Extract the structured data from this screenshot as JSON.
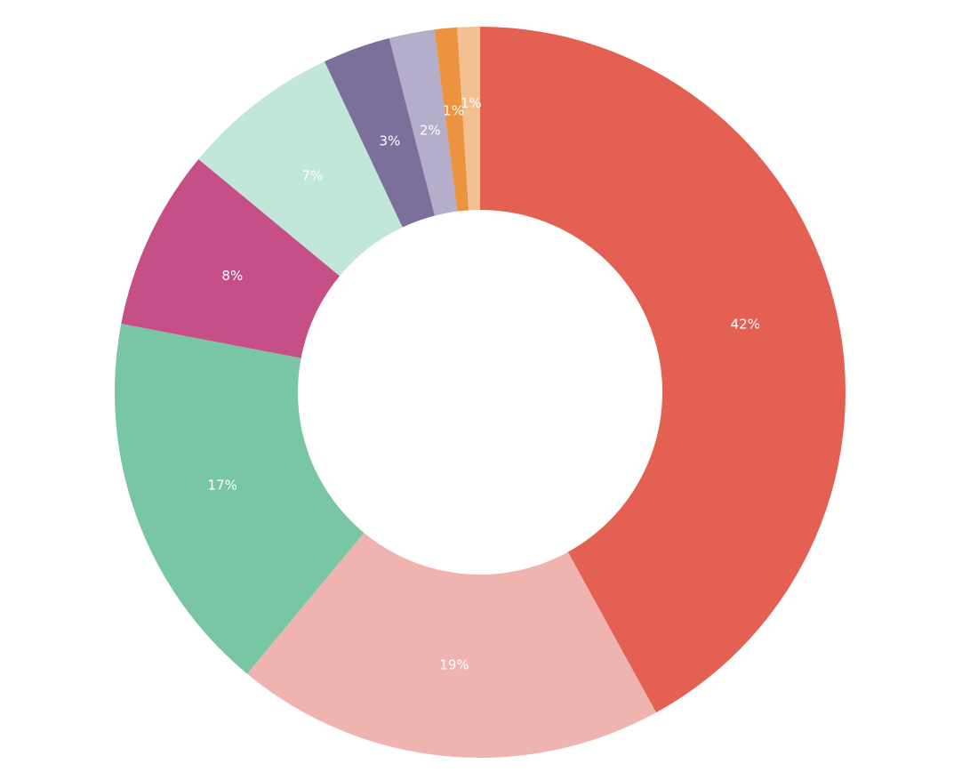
{
  "chart_data": {
    "type": "pie",
    "variant": "donut",
    "title": "",
    "start": "top",
    "direction": "clockwise",
    "slices": [
      {
        "value": 42,
        "label": "42%",
        "color": "#e46052"
      },
      {
        "value": 19,
        "label": "19%",
        "color": "#efb3b0"
      },
      {
        "value": 17,
        "label": "17%",
        "color": "#78c6a4"
      },
      {
        "value": 8,
        "label": "8%",
        "color": "#c64f88"
      },
      {
        "value": 7,
        "label": "7%",
        "color": "#c1e7d8"
      },
      {
        "value": 3,
        "label": "3%",
        "color": "#7d6f9c"
      },
      {
        "value": 2,
        "label": "2%",
        "color": "#b5aecb"
      },
      {
        "value": 1,
        "label": "1%",
        "color": "#ec9340"
      },
      {
        "value": 1,
        "label": "1%",
        "color": "#f4c092"
      }
    ]
  }
}
